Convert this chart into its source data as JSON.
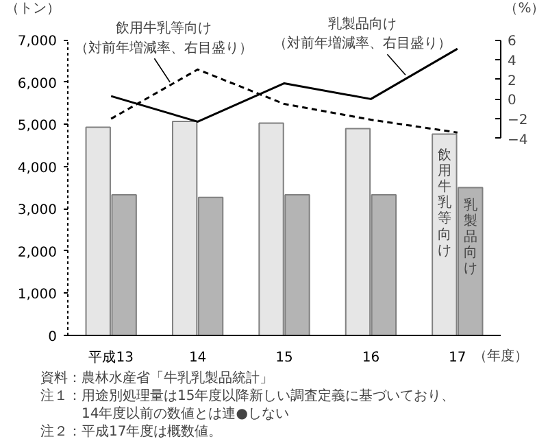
{
  "chart_data": {
    "type": "bar",
    "categories": [
      "平成13",
      "14",
      "15",
      "16",
      "17"
    ],
    "xlabel": "（年度）",
    "ylabel": "（トン）",
    "y2label": "（%）",
    "ylim": [
      0,
      7000
    ],
    "yticks": [
      0,
      {
        "value": 1000,
        "label": "1,000"
      },
      {
        "value": 2000,
        "label": "2,000"
      },
      {
        "value": 3000,
        "label": "3,000"
      },
      {
        "value": 4000,
        "label": "4,000"
      },
      {
        "value": 5000,
        "label": "5,000"
      },
      {
        "value": 6000,
        "label": "6,000"
      },
      {
        "value": 7000,
        "label": "7,000"
      }
    ],
    "y2lim": [
      -24,
      6
    ],
    "y2ticks": [
      6,
      4,
      2,
      0,
      {
        "value": -2,
        "label": "−2"
      },
      {
        "value": -4,
        "label": "−4"
      }
    ],
    "series": [
      {
        "name": "飲用牛乳等向け",
        "color": "#e6e6e6",
        "values": [
          4930,
          5070,
          5030,
          4900,
          4770
        ]
      },
      {
        "name": "乳製品向け",
        "color": "#b4b4b4",
        "values": [
          3330,
          3270,
          3330,
          3330,
          3500
        ]
      },
      {
        "name": "飲用牛乳等向け（対前年増減率、右目盛り）",
        "type": "line",
        "axis": "y2",
        "line_style": "dashed",
        "color": "#000000",
        "values": [
          -2.0,
          3.0,
          -0.5,
          -2.1,
          -3.4
        ]
      },
      {
        "name": "乳製品向け（対前年増減率、右目盛り）",
        "type": "line",
        "axis": "y2",
        "line_style": "solid",
        "color": "#000000",
        "values": [
          0.3,
          -2.3,
          1.6,
          0.0,
          5.1
        ]
      }
    ],
    "grid": false,
    "legend": false,
    "marker": "none",
    "annotations": [
      "資料：農林水産省「牛乳乳製品統計」",
      "注１：用途別処理量は15年度以降新しい調査定義に基づいており、",
      "　　　14年度以前の数値とは連●しない",
      "注２：平成17年度は概数値。"
    ]
  }
}
